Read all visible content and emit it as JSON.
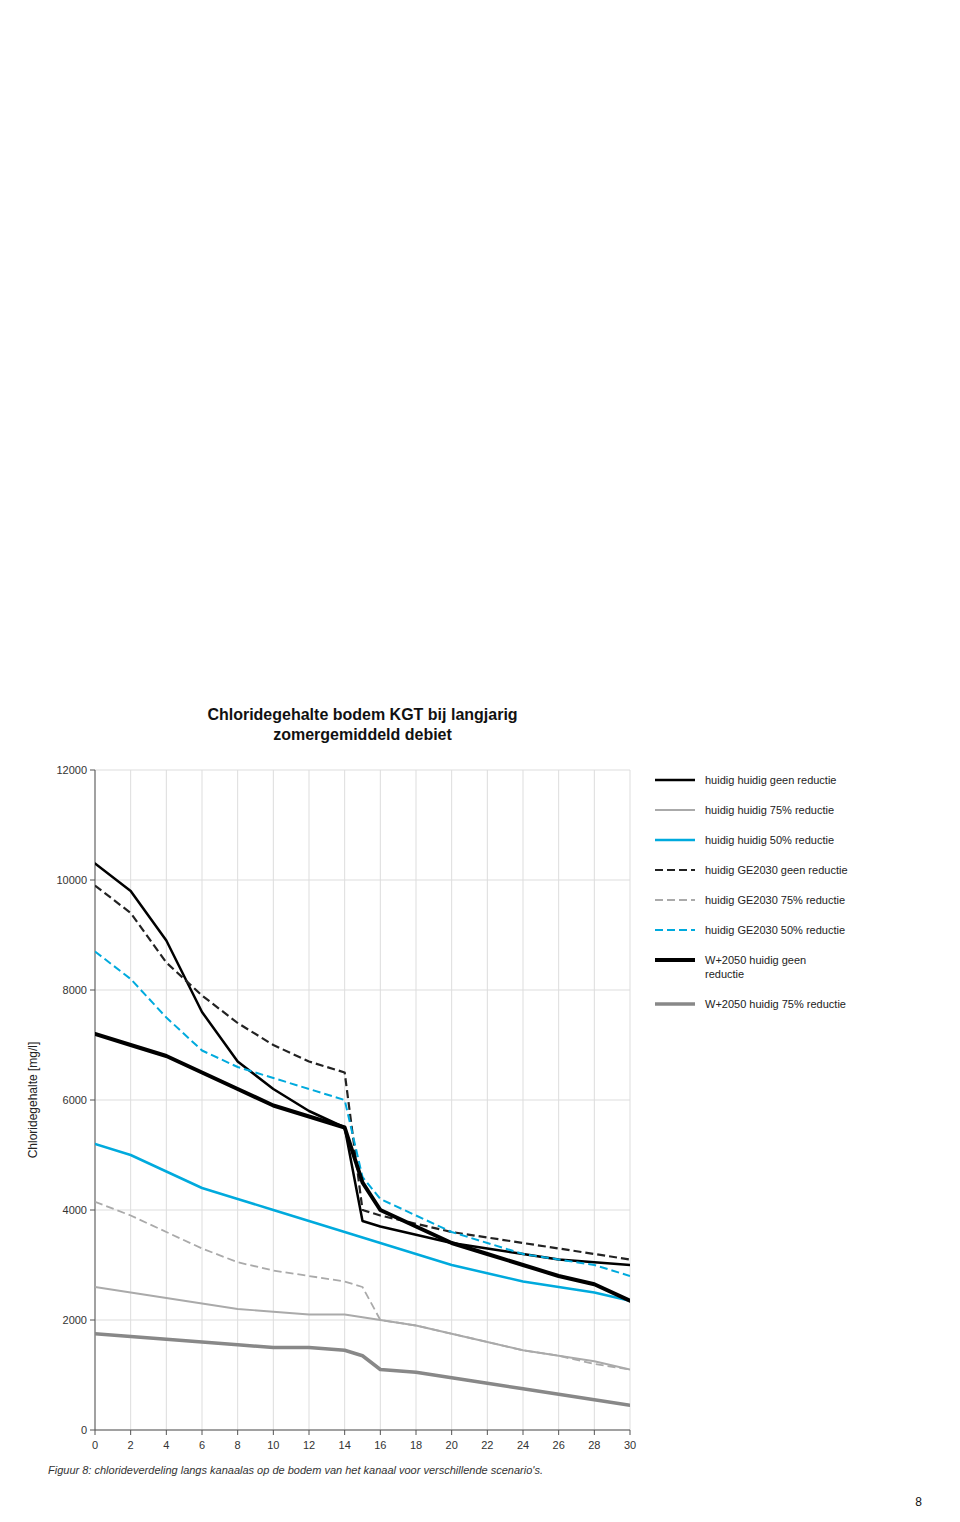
{
  "chart_data": {
    "type": "line",
    "title": "Chloridegehalte bodem KGT bij langjarig\nzomergemiddeld debiet",
    "y_label": "Chloridegehalte [mg/l]",
    "caption": "Figuur 8: chlorideverdeling langs kanaalas op de bodem van het kanaal voor verschillende scenario's.",
    "page_label": "8",
    "x": [
      0,
      2,
      4,
      6,
      8,
      10,
      12,
      14,
      15,
      16,
      18,
      20,
      22,
      24,
      26,
      28,
      30
    ],
    "xlim": [
      0,
      30
    ],
    "ylim": [
      0,
      12000
    ],
    "xticks": [
      0,
      2,
      4,
      6,
      8,
      10,
      12,
      14,
      16,
      18,
      20,
      22,
      24,
      26,
      28,
      30
    ],
    "yticks": [
      0,
      2000,
      4000,
      6000,
      8000,
      10000,
      12000
    ],
    "grid": true,
    "legend": "right",
    "series": [
      {
        "name": "huidig huidig geen reductie",
        "color": "#000000",
        "line_style": "solid",
        "values": [
          10300,
          9800,
          8900,
          7600,
          6700,
          6200,
          5800,
          5500,
          3800,
          3700,
          3550,
          3400,
          3300,
          3200,
          3100,
          3050,
          3000
        ]
      },
      {
        "name": "huidig huidig 75% reductie",
        "color": "#aaaaaa",
        "line_style": "solid",
        "values": [
          2600,
          2500,
          2400,
          2300,
          2200,
          2150,
          2100,
          2100,
          2050,
          2000,
          1900,
          1750,
          1600,
          1450,
          1350,
          1250,
          1100
        ]
      },
      {
        "name": "huidig huidig 50% reductie",
        "color": "#00aadd",
        "line_style": "solid",
        "values": [
          5200,
          5000,
          4700,
          4400,
          4200,
          4000,
          3800,
          3600,
          3500,
          3400,
          3200,
          3000,
          2850,
          2700,
          2600,
          2500,
          2350
        ]
      },
      {
        "name": "huidig GE2030 geen reductie",
        "color": "#222222",
        "line_style": "dashed",
        "values": [
          9900,
          9400,
          8500,
          7900,
          7400,
          7000,
          6700,
          6500,
          4000,
          3900,
          3750,
          3600,
          3500,
          3400,
          3300,
          3200,
          3100
        ]
      },
      {
        "name": "huidig GE2030 75% reductie",
        "color": "#aaaaaa",
        "line_style": "dashed",
        "values": [
          4150,
          3900,
          3600,
          3300,
          3050,
          2900,
          2800,
          2700,
          2600,
          2000,
          1900,
          1750,
          1600,
          1450,
          1350,
          1200,
          1100
        ]
      },
      {
        "name": "huidig GE2030 50% reductie",
        "color": "#00aadd",
        "line_style": "dashed",
        "values": [
          8700,
          8200,
          7500,
          6900,
          6600,
          6400,
          6200,
          6000,
          4600,
          4200,
          3900,
          3600,
          3400,
          3200,
          3100,
          3000,
          2800
        ]
      },
      {
        "name": "W+2050 huidig geen\nreductie",
        "color": "#000000",
        "line_style": "solid",
        "values": [
          7200,
          7000,
          6800,
          6500,
          6200,
          5900,
          5700,
          5500,
          4500,
          4000,
          3700,
          3400,
          3200,
          3000,
          2800,
          2650,
          2350
        ]
      },
      {
        "name": "W+2050 huidig 75% reductie",
        "color": "#888888",
        "line_style": "solid",
        "values": [
          1750,
          1700,
          1650,
          1600,
          1550,
          1500,
          1500,
          1450,
          1350,
          1100,
          1050,
          950,
          850,
          750,
          650,
          550,
          450
        ]
      }
    ]
  }
}
